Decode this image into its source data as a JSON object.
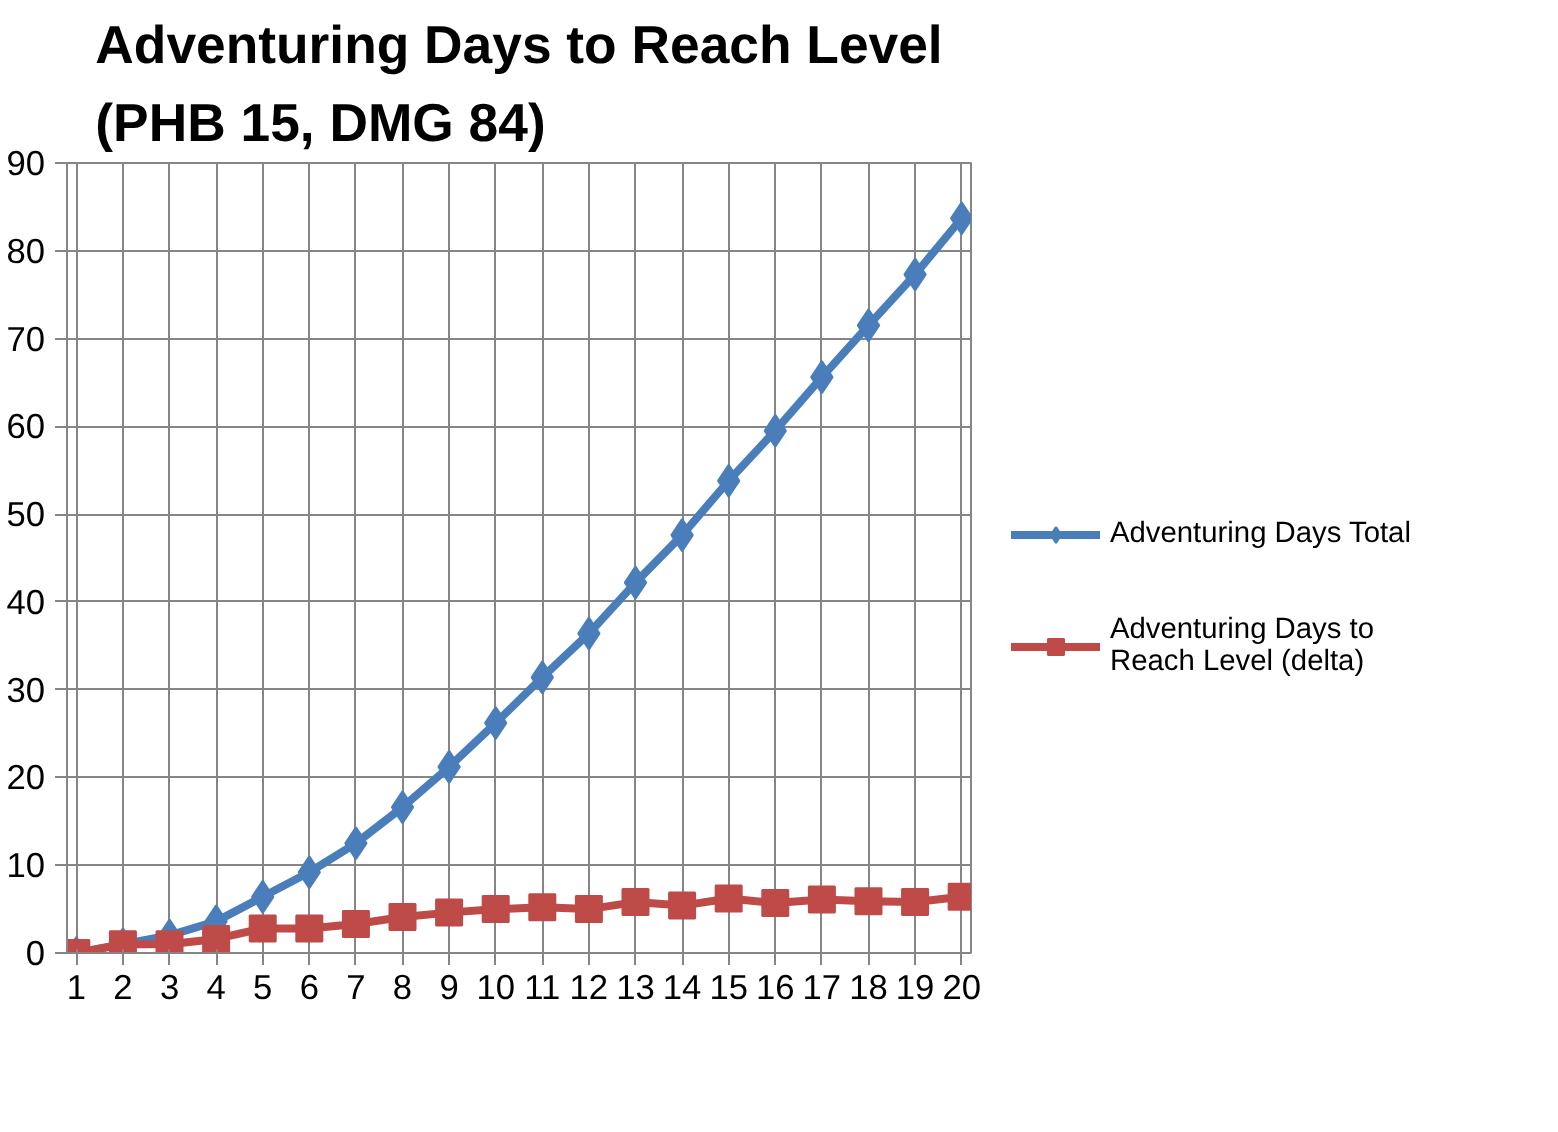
{
  "chart_data": {
    "type": "line",
    "title": "Adventuring Days to Reach Level\n(PHB 15, DMG 84)",
    "x": [
      1,
      2,
      3,
      4,
      5,
      6,
      7,
      8,
      9,
      10,
      11,
      12,
      13,
      14,
      15,
      16,
      17,
      18,
      19,
      20
    ],
    "xlim": [
      0.8,
      20.2
    ],
    "xticks": [
      1,
      2,
      3,
      4,
      5,
      6,
      7,
      8,
      9,
      10,
      11,
      12,
      13,
      14,
      15,
      16,
      17,
      18,
      19,
      20
    ],
    "ylim": [
      0,
      90
    ],
    "yticks": [
      0,
      10,
      20,
      30,
      40,
      50,
      60,
      70,
      80,
      90
    ],
    "grid": true,
    "legend": "right",
    "line_style": "solid",
    "series": [
      {
        "name": "Adventuring Days Total",
        "color": "#4a7ebb",
        "marker": "diamond",
        "values": [
          0,
          1,
          2,
          3.6,
          6.4,
          9.2,
          12.5,
          16.6,
          21.2,
          26.2,
          31.4,
          36.4,
          42.2,
          47.6,
          53.8,
          59.5,
          65.6,
          71.5,
          77.3,
          83.7
        ]
      },
      {
        "name": "Adventuring Days to Reach Level (delta)",
        "color": "#be4b48",
        "marker": "square",
        "values": [
          0,
          1,
          1,
          1.6,
          2.8,
          2.8,
          3.3,
          4.1,
          4.6,
          5,
          5.2,
          5,
          5.8,
          5.4,
          6.2,
          5.7,
          6.1,
          5.9,
          5.8,
          6.4
        ]
      }
    ]
  }
}
